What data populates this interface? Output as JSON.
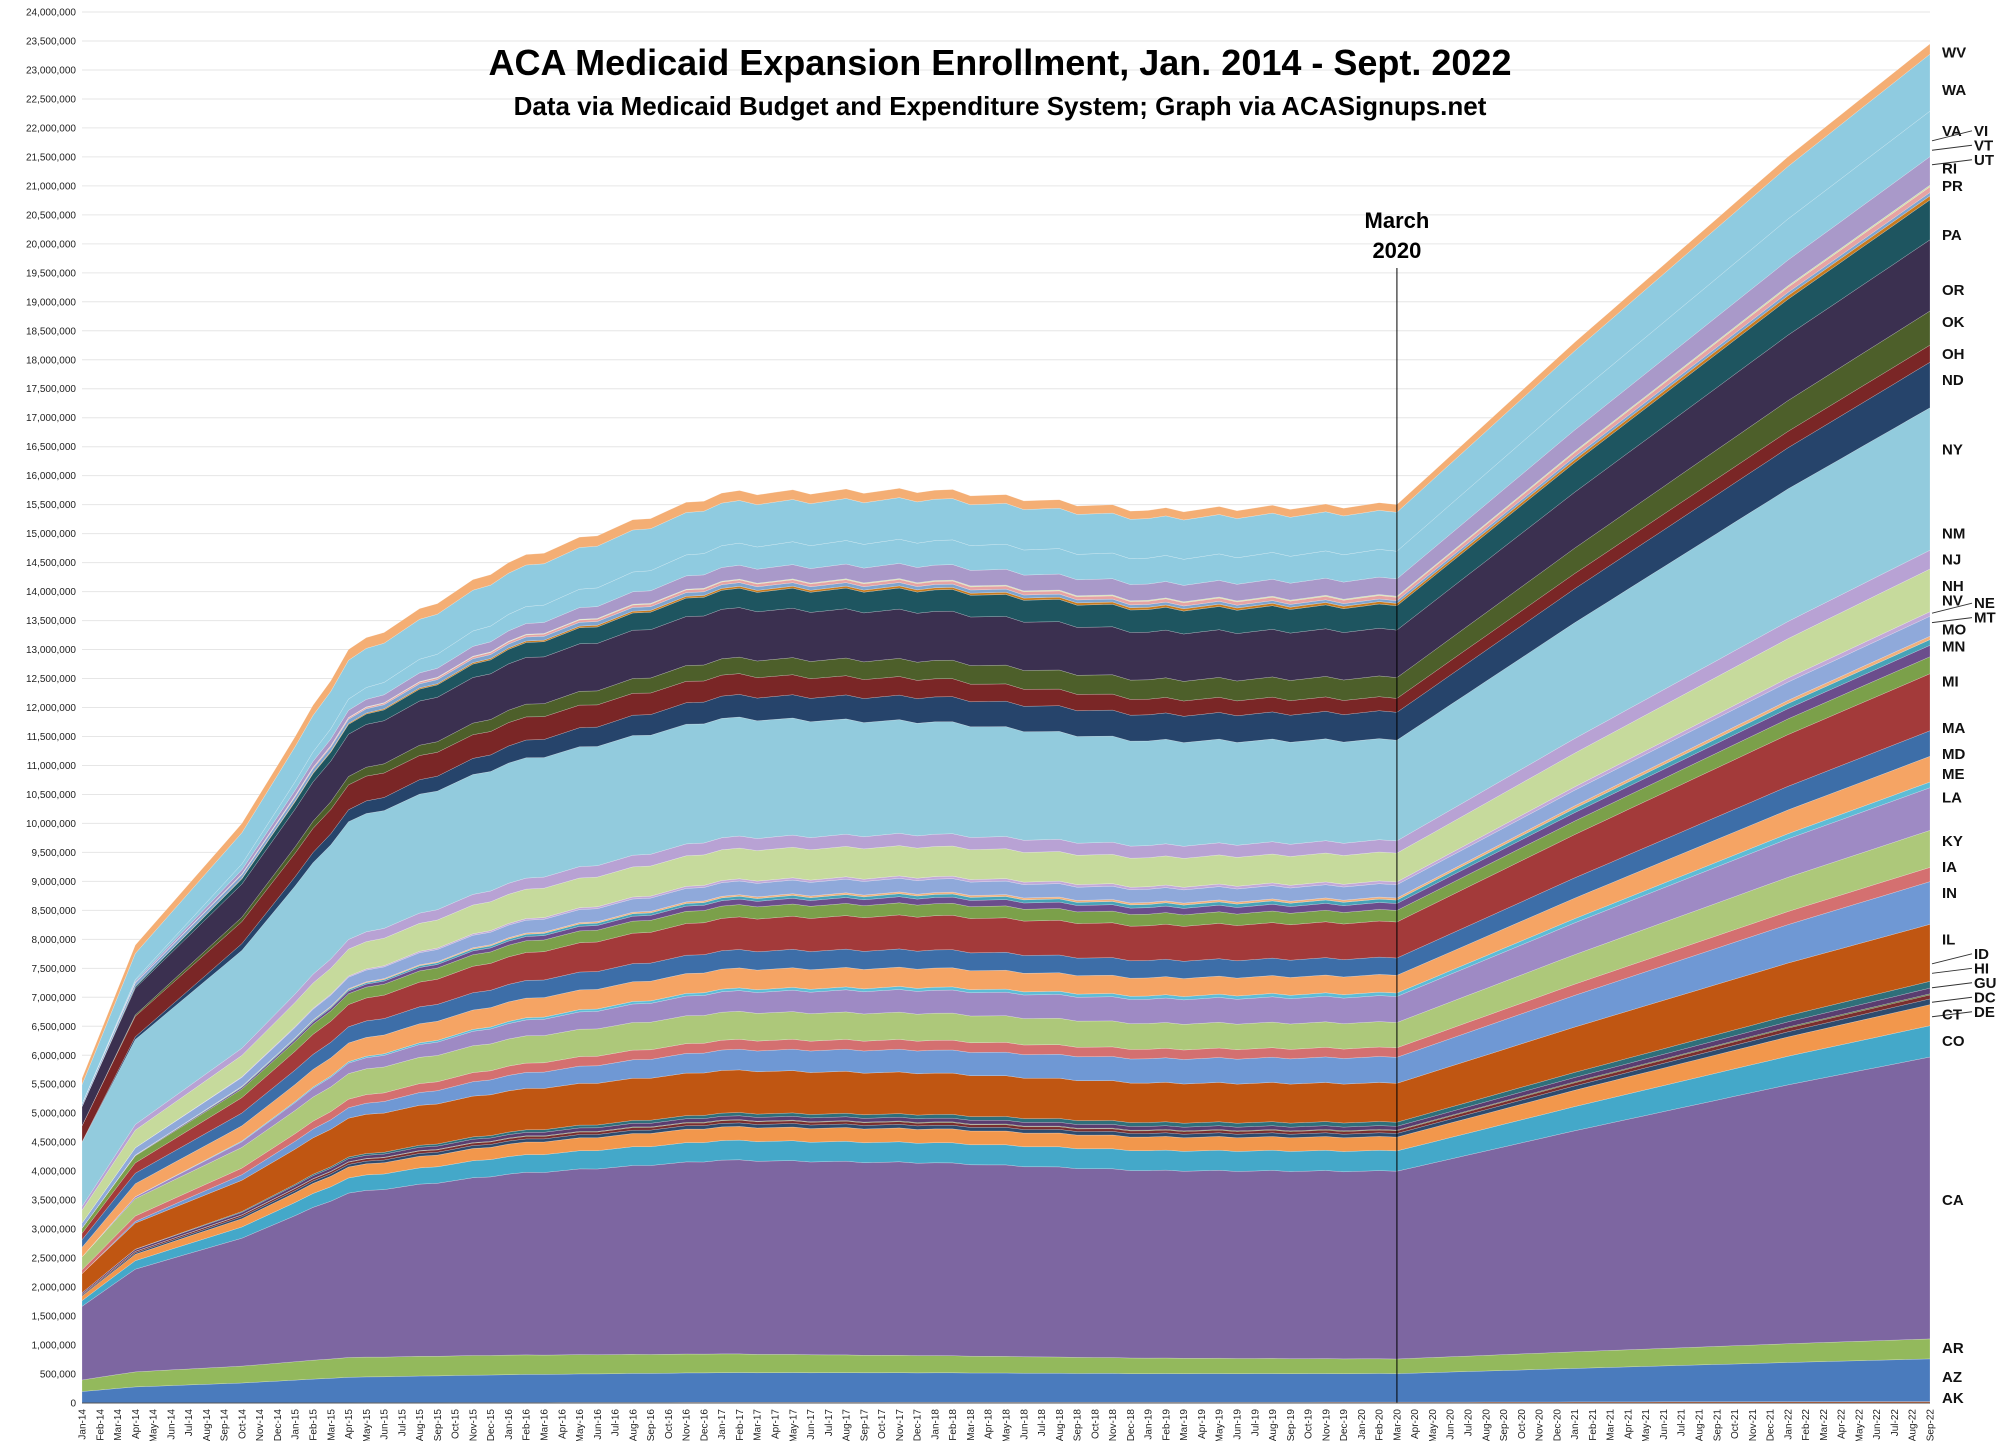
{
  "chart_data": {
    "type": "area",
    "title": "ACA Medicaid Expansion Enrollment, Jan. 2014 - Sept. 2022",
    "subtitle": "Data via Medicaid Budget and Expenditure System; Graph via ACASignups.net",
    "annotation": {
      "line1": "March",
      "line2": "2020",
      "x": "Mar-20"
    },
    "stacked": true,
    "ylim": [
      0,
      24000000
    ],
    "ytick_step": 500000,
    "grid": true,
    "x": [
      "Jan-14",
      "Feb-14",
      "Mar-14",
      "Apr-14",
      "May-14",
      "Jun-14",
      "Jul-14",
      "Aug-14",
      "Sep-14",
      "Oct-14",
      "Nov-14",
      "Dec-14",
      "Jan-15",
      "Feb-15",
      "Mar-15",
      "Apr-15",
      "May-15",
      "Jun-15",
      "Jul-15",
      "Aug-15",
      "Sep-15",
      "Oct-15",
      "Nov-15",
      "Dec-15",
      "Jan-16",
      "Feb-16",
      "Mar-16",
      "Apr-16",
      "May-16",
      "Jun-16",
      "Jul-16",
      "Aug-16",
      "Sep-16",
      "Oct-16",
      "Nov-16",
      "Dec-16",
      "Jan-17",
      "Feb-17",
      "Mar-17",
      "Apr-17",
      "May-17",
      "Jun-17",
      "Jul-17",
      "Aug-17",
      "Sep-17",
      "Oct-17",
      "Nov-17",
      "Dec-17",
      "Jan-18",
      "Feb-18",
      "Mar-18",
      "Apr-18",
      "May-18",
      "Jun-18",
      "Jul-18",
      "Aug-18",
      "Sep-18",
      "Oct-18",
      "Nov-18",
      "Dec-18",
      "Jan-19",
      "Feb-19",
      "Mar-19",
      "Apr-19",
      "May-19",
      "Jun-19",
      "Jul-19",
      "Aug-19",
      "Sep-19",
      "Oct-19",
      "Nov-19",
      "Dec-19",
      "Jan-20",
      "Feb-20",
      "Mar-20",
      "Apr-20",
      "May-20",
      "Jun-20",
      "Jul-20",
      "Aug-20",
      "Sep-20",
      "Oct-20",
      "Nov-20",
      "Dec-20",
      "Jan-21",
      "Feb-21",
      "Mar-21",
      "Apr-21",
      "May-21",
      "Jun-21",
      "Jul-21",
      "Aug-21",
      "Sep-21",
      "Oct-21",
      "Nov-21",
      "Dec-21",
      "Jan-22",
      "Feb-22",
      "Mar-22",
      "Apr-22",
      "May-22",
      "Jun-22",
      "Jul-22",
      "Aug-22",
      "Sep-22"
    ],
    "anchor_totals": {
      "idx": [
        0,
        3,
        9,
        15,
        24,
        36,
        48,
        60,
        74,
        84,
        96,
        104
      ],
      "val": [
        5600000,
        7900000,
        10000000,
        13000000,
        14500000,
        15700000,
        15750000,
        15400000,
        15500000,
        18300000,
        21500000,
        23450000
      ]
    },
    "series": [
      {
        "name": "AK",
        "color": "#e8622a",
        "start": 0,
        "end": 25000
      },
      {
        "name": "AZ",
        "color": "#4a7bbd",
        "start": 180000,
        "end": 750000
      },
      {
        "name": "AR",
        "color": "#93b95c",
        "start": 180000,
        "end": 350000
      },
      {
        "name": "CA",
        "color": "#7d66a1",
        "start": 1150000,
        "end": 4950000
      },
      {
        "name": "CO",
        "color": "#44a8c9",
        "start": 90000,
        "end": 550000
      },
      {
        "name": "CT",
        "color": "#f2974c",
        "start": 70000,
        "end": 370000
      },
      {
        "name": "DE",
        "color": "#2e4b6e",
        "start": 15000,
        "end": 100000
      },
      {
        "name": "DC",
        "color": "#7a2e2e",
        "start": 15000,
        "end": 70000
      },
      {
        "name": "GU",
        "color": "#4f6b2e",
        "start": 2000,
        "end": 20000
      },
      {
        "name": "HI",
        "color": "#5a3d70",
        "start": 20000,
        "end": 100000
      },
      {
        "name": "ID",
        "color": "#2f6f7a",
        "start": 0,
        "end": 120000
      },
      {
        "name": "IL",
        "color": "#c05612",
        "start": 300000,
        "end": 1000000
      },
      {
        "name": "IN",
        "color": "#6f98d4",
        "start": 0,
        "end": 750000
      },
      {
        "name": "IA",
        "color": "#d47070",
        "start": 60000,
        "end": 250000
      },
      {
        "name": "KY",
        "color": "#adc87a",
        "start": 200000,
        "end": 650000
      },
      {
        "name": "LA",
        "color": "#9e8ac4",
        "start": 0,
        "end": 750000
      },
      {
        "name": "ME",
        "color": "#5dbcd6",
        "start": 0,
        "end": 100000
      },
      {
        "name": "MD",
        "color": "#f5a464",
        "start": 150000,
        "end": 450000
      },
      {
        "name": "MA",
        "color": "#3d6ea8",
        "start": 120000,
        "end": 450000
      },
      {
        "name": "MI",
        "color": "#a33a3a",
        "start": 100000,
        "end": 1000000
      },
      {
        "name": "MN",
        "color": "#7ba04a",
        "start": 80000,
        "end": 300000
      },
      {
        "name": "MO",
        "color": "#6b4d8c",
        "start": 0,
        "end": 200000
      },
      {
        "name": "MT",
        "color": "#47a3b8",
        "start": 0,
        "end": 100000
      },
      {
        "name": "NE",
        "color": "#f0b07c",
        "start": 0,
        "end": 60000
      },
      {
        "name": "NV",
        "color": "#8fa9da",
        "start": 80000,
        "end": 350000
      },
      {
        "name": "NH",
        "color": "#c2a9d8",
        "start": 0,
        "end": 80000
      },
      {
        "name": "NJ",
        "color": "#c6da9c",
        "start": 200000,
        "end": 750000
      },
      {
        "name": "NM",
        "color": "#b8a2d4",
        "start": 60000,
        "end": 330000
      },
      {
        "name": "NY",
        "color": "#92cbdd",
        "start": 1000000,
        "end": 2500000
      },
      {
        "name": "ND",
        "color": "#26446b",
        "start": 10000,
        "end": 800000
      },
      {
        "name": "OH",
        "color": "#7a2626",
        "start": 250000,
        "end": 300000
      },
      {
        "name": "OK",
        "color": "#4d5f2a",
        "start": 0,
        "end": 600000
      },
      {
        "name": "OR",
        "color": "#3b3050",
        "start": 300000,
        "end": 1250000
      },
      {
        "name": "PA",
        "color": "#1e5560",
        "start": 0,
        "end": 700000
      },
      {
        "name": "PR",
        "color": "#c77a1e",
        "start": 0,
        "end": 70000
      },
      {
        "name": "RI",
        "color": "#7ea4cf",
        "start": 40000,
        "end": 60000
      },
      {
        "name": "UT",
        "color": "#e6a3a3",
        "start": 0,
        "end": 100000
      },
      {
        "name": "VT",
        "color": "#d0e0a8",
        "start": 0,
        "end": 30000
      },
      {
        "name": "VI",
        "color": "#a999c9",
        "start": 2000,
        "end": 500000
      },
      {
        "name": "VA",
        "color": "#8fcbe0",
        "start": 0,
        "end": 800000
      },
      {
        "name": "WA",
        "color": "#8fcbe0",
        "start": 300000,
        "end": 1000000
      },
      {
        "name": "WV",
        "color": "#f4ae74",
        "start": 100000,
        "end": 180000
      }
    ],
    "labels": [
      {
        "text": "WV",
        "y": 23300000
      },
      {
        "text": "WA",
        "y": 22650000
      },
      {
        "text": "VA",
        "y": 21950000
      },
      {
        "text": "VI",
        "y": 21950000,
        "leader": true
      },
      {
        "text": "VT",
        "y": 21700000,
        "leader": true
      },
      {
        "text": "UT",
        "y": 21450000,
        "leader": true
      },
      {
        "text": "RI",
        "y": 21300000
      },
      {
        "text": "PR",
        "y": 21000000
      },
      {
        "text": "PA",
        "y": 20150000
      },
      {
        "text": "OR",
        "y": 19200000
      },
      {
        "text": "OK",
        "y": 18650000
      },
      {
        "text": "OH",
        "y": 18100000
      },
      {
        "text": "ND",
        "y": 17650000
      },
      {
        "text": "NY",
        "y": 16450000
      },
      {
        "text": "NM",
        "y": 15000000
      },
      {
        "text": "NJ",
        "y": 14550000
      },
      {
        "text": "NH",
        "y": 14100000
      },
      {
        "text": "NV",
        "y": 13850000
      },
      {
        "text": "NE",
        "y": 13800000,
        "leader": true
      },
      {
        "text": "MT",
        "y": 13550000,
        "leader": true
      },
      {
        "text": "MO",
        "y": 13350000
      },
      {
        "text": "MN",
        "y": 13050000
      },
      {
        "text": "MI",
        "y": 12450000
      },
      {
        "text": "MA",
        "y": 11650000
      },
      {
        "text": "MD",
        "y": 11200000
      },
      {
        "text": "ME",
        "y": 10850000
      },
      {
        "text": "LA",
        "y": 10450000
      },
      {
        "text": "KY",
        "y": 9700000
      },
      {
        "text": "IA",
        "y": 9250000
      },
      {
        "text": "IN",
        "y": 8800000
      },
      {
        "text": "IL",
        "y": 8000000
      },
      {
        "text": "ID",
        "y": 7750000,
        "leader": true
      },
      {
        "text": "HI",
        "y": 7500000,
        "leader": true
      },
      {
        "text": "GU",
        "y": 7250000,
        "leader": true
      },
      {
        "text": "DC",
        "y": 7000000,
        "leader": true
      },
      {
        "text": "DE",
        "y": 6750000,
        "leader": true
      },
      {
        "text": "CT",
        "y": 6700000
      },
      {
        "text": "CO",
        "y": 6250000
      },
      {
        "text": "CA",
        "y": 3500000
      },
      {
        "text": "AR",
        "y": 950000
      },
      {
        "text": "AZ",
        "y": 450000
      },
      {
        "text": "AK",
        "y": 0
      }
    ]
  }
}
